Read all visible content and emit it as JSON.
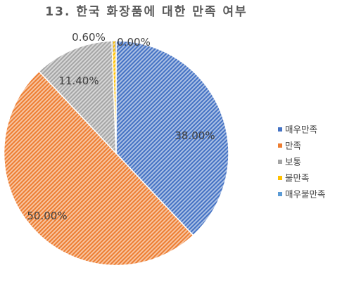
{
  "chart_data": {
    "type": "pie",
    "title": "13. 한국 화장품에 대한 만족 여부",
    "categories": [
      "매우만족",
      "만족",
      "보통",
      "불만족",
      "매우불만족"
    ],
    "values": [
      38.0,
      50.0,
      11.4,
      0.6,
      0.0
    ],
    "labels": [
      "38.00%",
      "50.00%",
      "11.40%",
      "0.60%",
      "0.00%"
    ],
    "colors": [
      "#4472c4",
      "#ed7d31",
      "#a5a5a5",
      "#ffc000",
      "#5b9bd5"
    ],
    "legend_position": "right",
    "start_angle": "top, clockwise"
  }
}
